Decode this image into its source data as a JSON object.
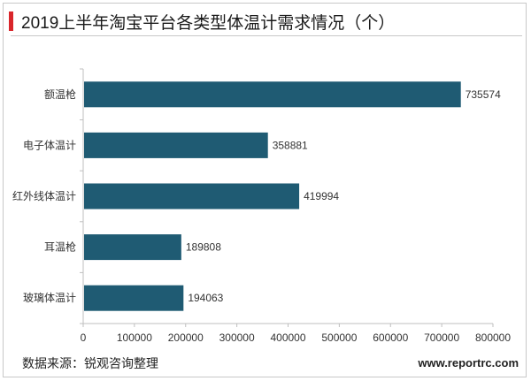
{
  "title": "2019上半年淘宝平台各类型体温计需求情况（个）",
  "source": "数据来源：锐观咨询整理",
  "website": "www.reportrc.com",
  "colors": {
    "bar": "#1f5b73",
    "accent": "#d9262b",
    "axis": "#bfbfbf"
  },
  "chart_data": {
    "type": "bar",
    "orientation": "horizontal",
    "categories": [
      "额温枪",
      "电子体温计",
      "红外线体温计",
      "耳温枪",
      "玻璃体温计"
    ],
    "values": [
      735574,
      358881,
      419994,
      189808,
      194063
    ],
    "value_labels": [
      "735574",
      "358881",
      "419994",
      "189808",
      "194063"
    ],
    "xlim": [
      0,
      800000
    ],
    "xticks": [
      0,
      100000,
      200000,
      300000,
      400000,
      500000,
      600000,
      700000,
      800000
    ],
    "xtick_labels": [
      "0",
      "100000",
      "200000",
      "300000",
      "400000",
      "500000",
      "600000",
      "700000",
      "800000"
    ],
    "grid": false,
    "legend": "none"
  }
}
